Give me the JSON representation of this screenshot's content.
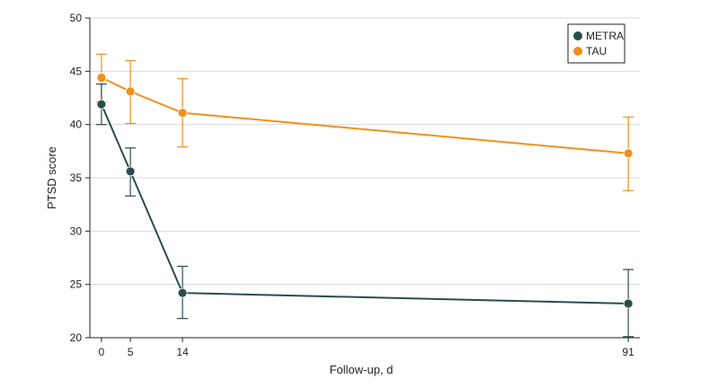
{
  "chart_data": {
    "type": "line",
    "title": "",
    "xlabel": "Follow-up, d",
    "ylabel": "PTSD score",
    "x": [
      0,
      5,
      14,
      91
    ],
    "x_ticks": [
      "0",
      "5",
      "14",
      "91"
    ],
    "xlim": [
      -2,
      93
    ],
    "ylim": [
      20,
      50
    ],
    "y_ticks": [
      "20",
      "25",
      "30",
      "35",
      "40",
      "45",
      "50"
    ],
    "grid": "horizontal",
    "legend_position": "top-right",
    "series": [
      {
        "name": "METRA",
        "color": "#2a4d4c",
        "values": [
          41.9,
          35.6,
          24.2,
          23.2
        ],
        "lower": [
          40.0,
          33.3,
          21.8,
          20.1
        ],
        "upper": [
          43.8,
          37.8,
          26.7,
          26.4
        ]
      },
      {
        "name": "TAU",
        "color": "#f0901c",
        "values": [
          44.4,
          43.1,
          41.1,
          37.3
        ],
        "lower": [
          42.1,
          40.1,
          37.9,
          33.8
        ],
        "upper": [
          46.6,
          46.0,
          44.3,
          40.7
        ]
      }
    ]
  }
}
